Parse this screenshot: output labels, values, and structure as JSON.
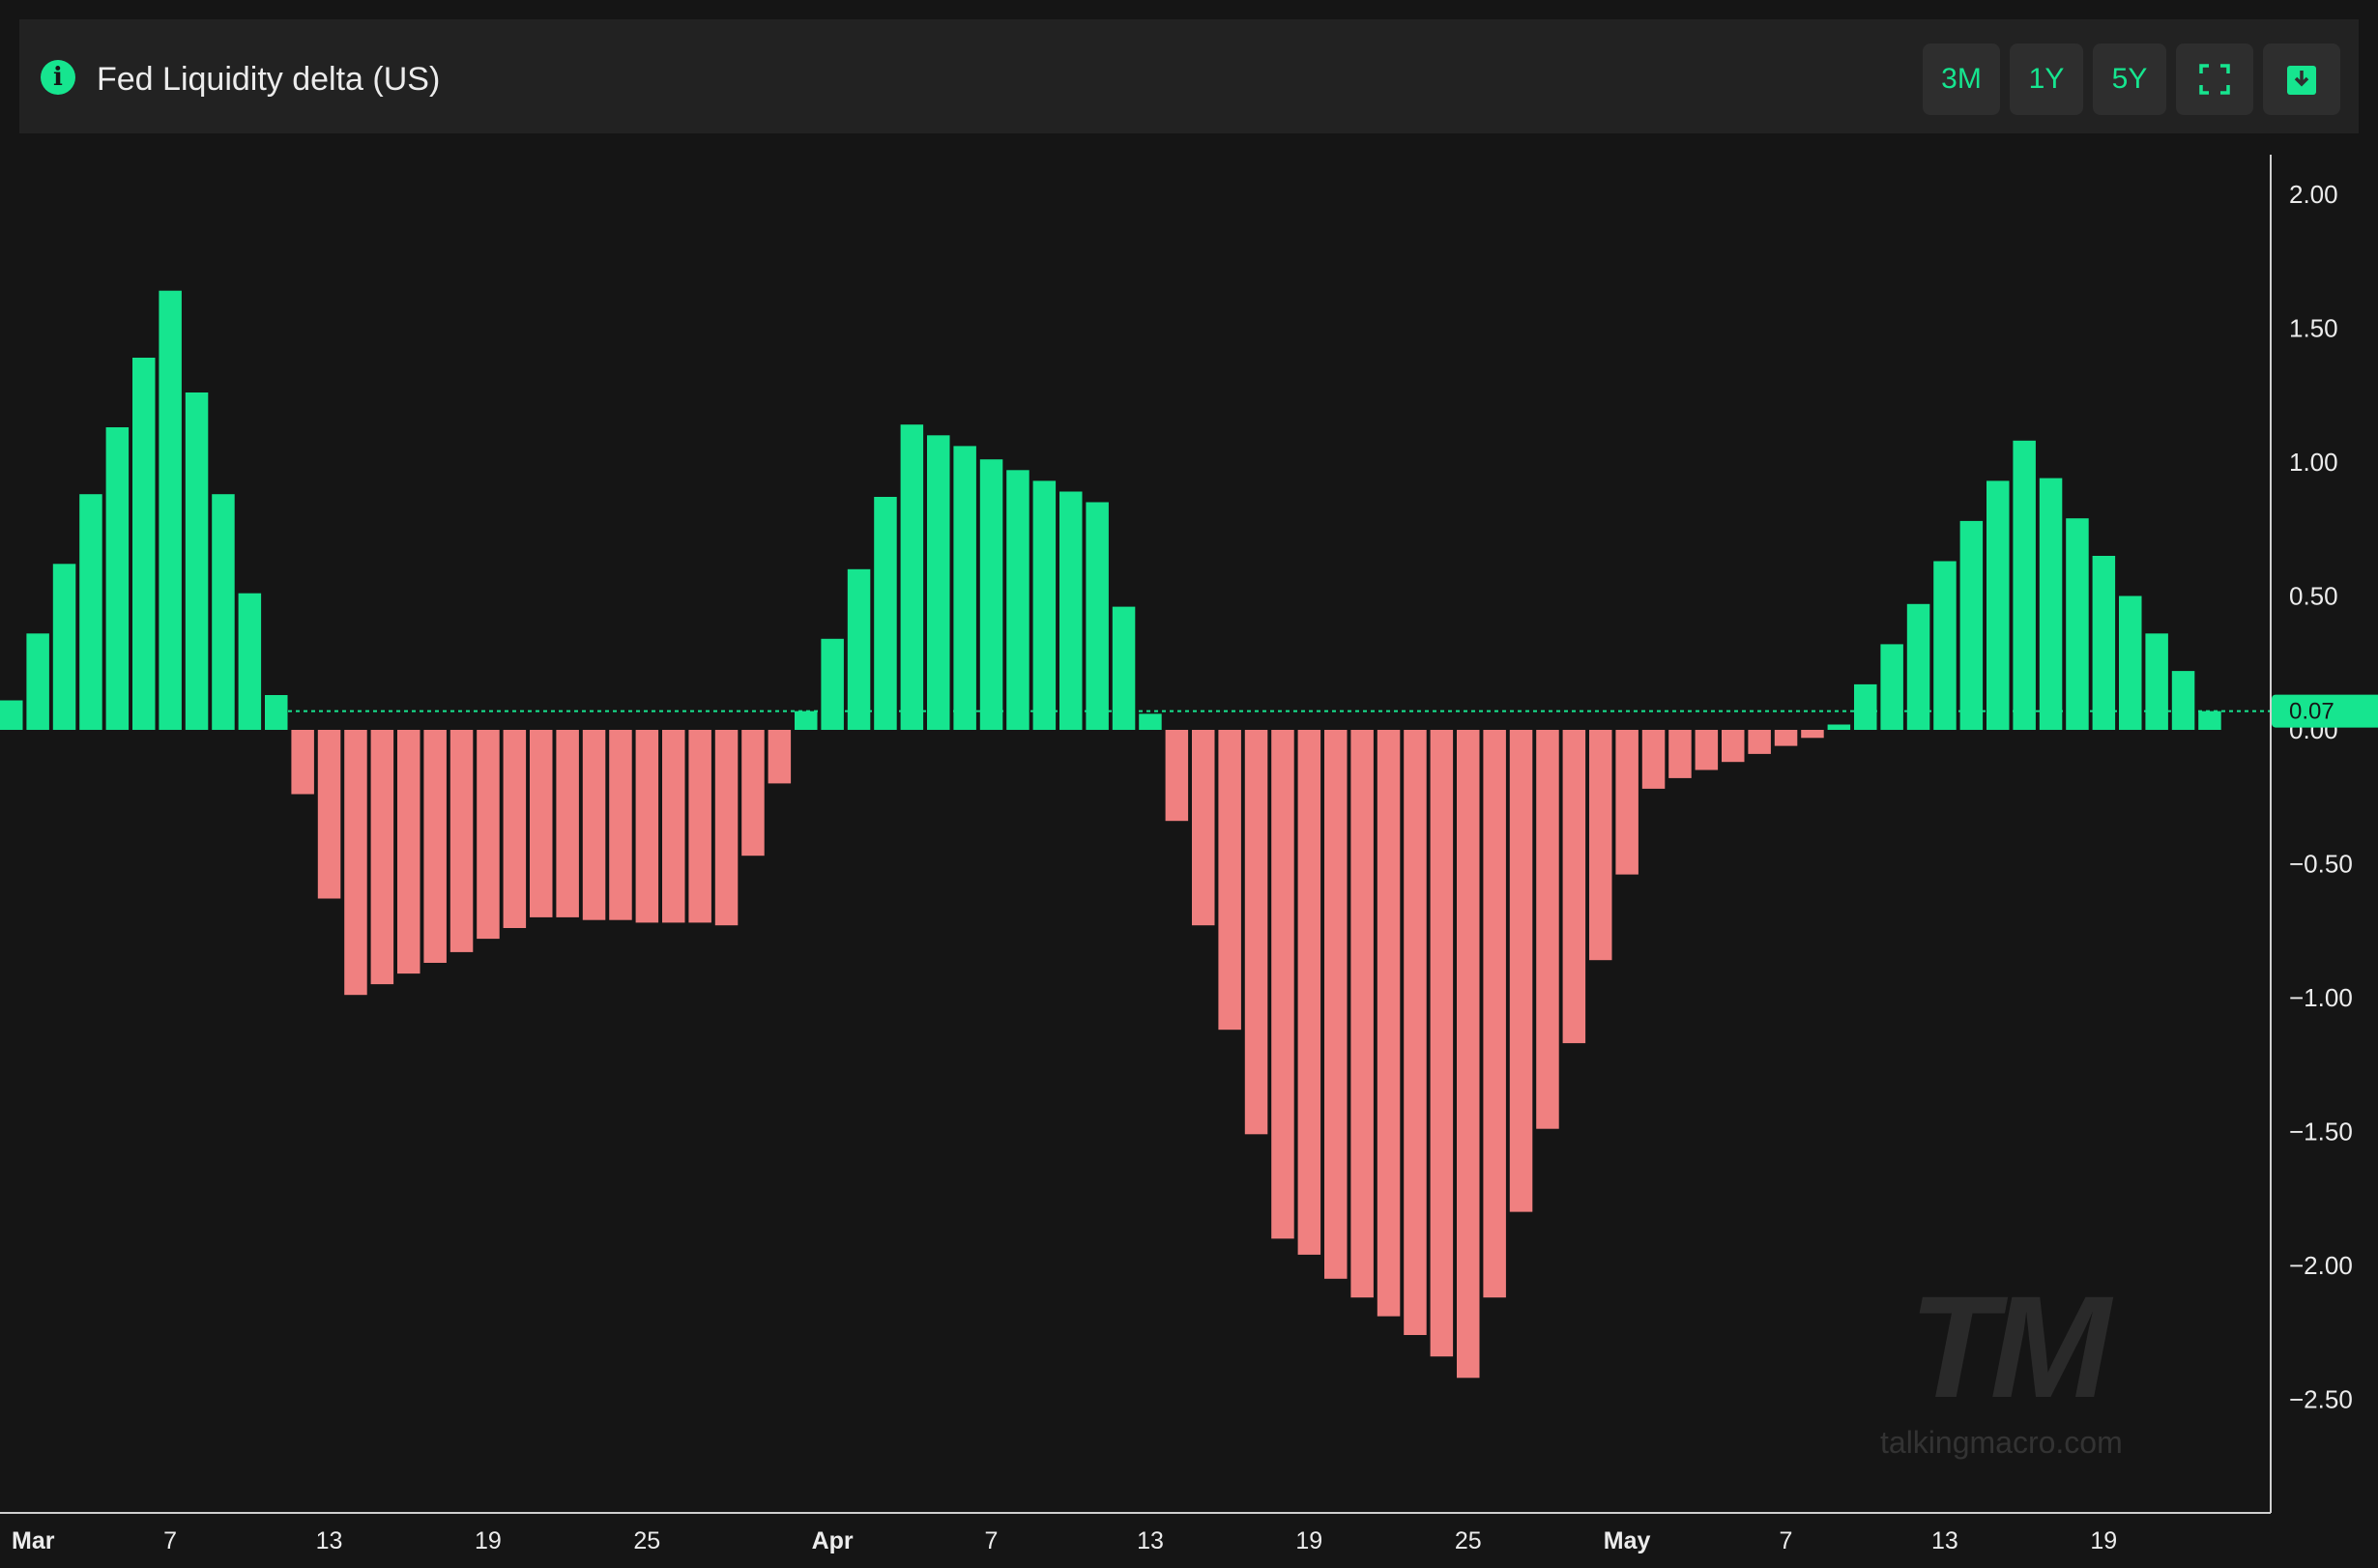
{
  "header": {
    "title": "Fed Liquidity delta (US)",
    "info_icon": "info-icon",
    "buttons": [
      {
        "id": "3m",
        "label": "3M"
      },
      {
        "id": "1y",
        "label": "1Y"
      },
      {
        "id": "5y",
        "label": "5Y"
      },
      {
        "id": "fullscreen",
        "icon": "fullscreen-icon"
      },
      {
        "id": "download",
        "icon": "download-icon"
      }
    ]
  },
  "colors": {
    "positive": "#16e58f",
    "negative": "#f08080",
    "background": "#151515",
    "header_bg": "#222222",
    "button_bg": "#2e2e2e"
  },
  "watermark": {
    "logo": "TM",
    "site": "talkingmacro.com"
  },
  "chart_data": {
    "type": "bar",
    "title": "Fed Liquidity delta (US)",
    "ylim": [
      -2.9,
      2.1
    ],
    "y_ticks": [
      2.0,
      1.5,
      1.0,
      0.5,
      0.0,
      -0.5,
      -1.0,
      -1.5,
      -2.0,
      -2.5
    ],
    "y_tick_labels": [
      "2.00",
      "1.50",
      "1.00",
      "0.50",
      "0.00",
      "−0.50",
      "−1.00",
      "−1.50",
      "−2.00",
      "−2.50"
    ],
    "x_tick_labels": [
      {
        "label": "Mar",
        "bold": true,
        "index": 0
      },
      {
        "label": "7",
        "bold": false,
        "index": 6
      },
      {
        "label": "13",
        "bold": false,
        "index": 12
      },
      {
        "label": "19",
        "bold": false,
        "index": 18
      },
      {
        "label": "25",
        "bold": false,
        "index": 24
      },
      {
        "label": "Apr",
        "bold": true,
        "index": 31
      },
      {
        "label": "7",
        "bold": false,
        "index": 37
      },
      {
        "label": "13",
        "bold": false,
        "index": 43
      },
      {
        "label": "19",
        "bold": false,
        "index": 49
      },
      {
        "label": "25",
        "bold": false,
        "index": 55
      },
      {
        "label": "May",
        "bold": true,
        "index": 61
      },
      {
        "label": "7",
        "bold": false,
        "index": 67
      },
      {
        "label": "13",
        "bold": false,
        "index": 73
      },
      {
        "label": "19",
        "bold": false,
        "index": 79
      }
    ],
    "last_value": 0.07,
    "last_value_label": "0.07",
    "series": [
      {
        "values": [
          0.11,
          0.36,
          0.62,
          0.88,
          1.13,
          1.39,
          1.64,
          1.26,
          0.88,
          0.51,
          0.13,
          -0.24,
          -0.63,
          -0.99,
          -0.95,
          -0.91,
          -0.87,
          -0.83,
          -0.78,
          -0.74,
          -0.7,
          -0.7,
          -0.71,
          -0.71,
          -0.72,
          -0.72,
          -0.72,
          -0.73,
          -0.47,
          -0.2,
          0.07,
          0.34,
          0.6,
          0.87,
          1.14,
          1.1,
          1.06,
          1.01,
          0.97,
          0.93,
          0.89,
          0.85,
          0.46,
          0.06,
          -0.34,
          -0.73,
          -1.12,
          -1.51,
          -1.9,
          -1.96,
          -2.05,
          -2.12,
          -2.19,
          -2.26,
          -2.34,
          -2.42,
          -2.12,
          -1.8,
          -1.49,
          -1.17,
          -0.86,
          -0.54,
          -0.22,
          -0.18,
          -0.15,
          -0.12,
          -0.09,
          -0.06,
          -0.03,
          0.02,
          0.17,
          0.32,
          0.47,
          0.63,
          0.78,
          0.93,
          1.08,
          0.94,
          0.79,
          0.65,
          0.5,
          0.36,
          0.22,
          0.07
        ]
      }
    ]
  }
}
